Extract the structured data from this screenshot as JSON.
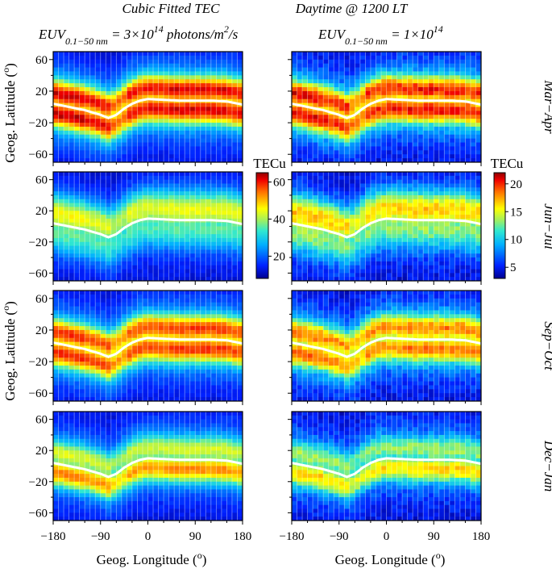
{
  "chart_data": {
    "type": "heatmap",
    "title_left": "Cubic Fitted TEC",
    "title_right": "Daytime @ 1200 LT",
    "columns": [
      {
        "label_main": "EUV",
        "label_sub": "0.1−50 nm",
        "label_eq": " = 3×10",
        "label_exp": "14",
        "label_unit": " photons/m",
        "label_unit_exp": "2",
        "label_tail": "/s",
        "euv_flux": 300000000000000.0
      },
      {
        "label_main": "EUV",
        "label_sub": "0.1−50 nm",
        "label_eq": " = 1×10",
        "label_exp": "14",
        "label_unit": "",
        "label_unit_exp": "",
        "label_tail": "",
        "euv_flux": 100000000000000.0
      }
    ],
    "rows": [
      "Mar−Apr",
      "Jun−Jul",
      "Sep−Oct",
      "Dec−Jan"
    ],
    "xlabel": "Geog. Longitude (",
    "xlabel_deg": "o",
    "xlabel_close": ")",
    "ylabel": "Geog. Latitude (",
    "ylabel_deg": "o",
    "ylabel_close": ")",
    "xlim": [
      -180,
      180
    ],
    "ylim": [
      -70,
      70
    ],
    "xticks": [
      "−180",
      "−90",
      "0",
      "90",
      "180"
    ],
    "xtick_values": [
      -180,
      -90,
      0,
      90,
      180
    ],
    "yticks": [
      "60",
      "20",
      "−20",
      "−60"
    ],
    "ytick_values": [
      60,
      20,
      -20,
      -60
    ],
    "colorbars": [
      {
        "title": "TECu",
        "min": 8,
        "max": 65,
        "ticks": [
          "20",
          "40",
          "60"
        ],
        "tick_values": [
          20,
          40,
          60
        ]
      },
      {
        "title": "TECu",
        "min": 3,
        "max": 22,
        "ticks": [
          "5",
          "10",
          "15",
          "20"
        ],
        "tick_values": [
          5,
          10,
          15,
          20
        ]
      }
    ],
    "panel_level": [
      [
        0.95,
        0.92
      ],
      [
        0.55,
        0.62
      ],
      [
        0.88,
        0.8
      ],
      [
        0.7,
        0.62
      ]
    ],
    "dip_equator": [
      [
        -180,
        4
      ],
      [
        -150,
        0
      ],
      [
        -120,
        -4
      ],
      [
        -90,
        -10
      ],
      [
        -75,
        -14
      ],
      [
        -60,
        -10
      ],
      [
        -45,
        -2
      ],
      [
        -30,
        4
      ],
      [
        -15,
        8
      ],
      [
        0,
        10
      ],
      [
        30,
        9
      ],
      [
        60,
        8
      ],
      [
        90,
        8
      ],
      [
        120,
        8
      ],
      [
        150,
        7
      ],
      [
        180,
        3
      ]
    ]
  }
}
